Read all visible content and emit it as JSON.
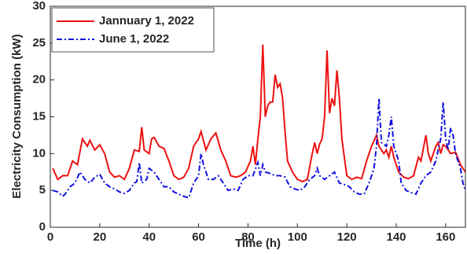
{
  "chart_data": {
    "type": "line",
    "xlabel": "Time (h)",
    "ylabel": "Electricity Consumption (kW)",
    "xlim": [
      0,
      168
    ],
    "ylim": [
      0,
      30
    ],
    "xticks": [
      0,
      20,
      40,
      60,
      80,
      100,
      120,
      140,
      160
    ],
    "yticks": [
      0,
      5,
      10,
      15,
      20,
      25,
      30
    ],
    "grid": false,
    "legend": "upper left",
    "series": [
      {
        "name": "Jannuary 1, 2022",
        "color": "#ee1111",
        "dash": "solid",
        "x": [
          1,
          3,
          5,
          7,
          9,
          11,
          13,
          15,
          16,
          18,
          20,
          22,
          24,
          26,
          28,
          30,
          32,
          34,
          36,
          37,
          38,
          40,
          41,
          42,
          44,
          46,
          48,
          50,
          52,
          54,
          56,
          58,
          60,
          61,
          63,
          65,
          67,
          69,
          71,
          73,
          75,
          77,
          79,
          81,
          82,
          83,
          84,
          85,
          86,
          87,
          88,
          89,
          90,
          91,
          92,
          93,
          94,
          95,
          96,
          98,
          100,
          102,
          104,
          106,
          107,
          108,
          109,
          110,
          111,
          112,
          113,
          114,
          115,
          116,
          117,
          118,
          120,
          122,
          124,
          126,
          128,
          130,
          132,
          133,
          135,
          136,
          137,
          138,
          139,
          141,
          143,
          145,
          147,
          149,
          150,
          152,
          153,
          154,
          156,
          157,
          158,
          159,
          160,
          162,
          164,
          166,
          168
        ],
        "values": [
          8,
          6.5,
          7,
          7,
          9,
          8.5,
          12,
          11,
          11.8,
          10.5,
          11.2,
          10,
          7.5,
          6.8,
          7,
          6.5,
          8,
          10.5,
          10.3,
          13.6,
          10.5,
          10,
          12,
          12.2,
          11,
          10.7,
          9,
          7,
          6.5,
          6.8,
          8,
          11,
          12,
          13,
          10.5,
          12,
          12.8,
          10.5,
          9,
          7,
          6.8,
          7,
          7.5,
          9,
          11,
          8.5,
          12,
          15,
          24.8,
          15,
          16.5,
          17,
          17,
          20.7,
          19,
          19.5,
          17.5,
          13,
          9,
          7.5,
          6.5,
          6.2,
          6.5,
          10,
          11.5,
          10,
          11.3,
          12,
          15,
          24,
          15.5,
          17.5,
          16.5,
          21.3,
          17.5,
          12,
          7,
          6.5,
          6.8,
          6.6,
          9,
          11,
          12.5,
          11,
          10,
          10.5,
          9.5,
          11,
          9.5,
          7.5,
          6.8,
          6.6,
          7,
          9.5,
          9,
          12.5,
          10,
          9,
          11,
          11.5,
          10,
          11.2,
          11,
          10,
          10.2,
          8.5,
          7.5
        ]
      },
      {
        "name": "June 1, 2022",
        "color": "#1010e0",
        "dash": "dashdot",
        "x": [
          1,
          3,
          5,
          6,
          8,
          10,
          12,
          14,
          16,
          18,
          20,
          22,
          24,
          26,
          28,
          30,
          32,
          34,
          35,
          36,
          37,
          39,
          40,
          42,
          44,
          46,
          48,
          50,
          52,
          54,
          56,
          58,
          60,
          61,
          62,
          64,
          66,
          68,
          70,
          72,
          74,
          76,
          78,
          80,
          82,
          84,
          85,
          86,
          87,
          89,
          91,
          93,
          95,
          97,
          99,
          101,
          103,
          105,
          107,
          108,
          109,
          111,
          113,
          115,
          117,
          119,
          121,
          123,
          125,
          127,
          129,
          131,
          132,
          133,
          134,
          136,
          137,
          138,
          139,
          141,
          142,
          144,
          146,
          148,
          150,
          152,
          154,
          156,
          158,
          159,
          160,
          161,
          162,
          163,
          164,
          166,
          167,
          168
        ],
        "values": [
          5,
          4.8,
          4.2,
          4.5,
          5.5,
          6,
          7.5,
          6.5,
          6,
          6.8,
          7.2,
          6,
          5.5,
          5.2,
          4.8,
          4.6,
          5,
          6,
          6.2,
          8.8,
          6,
          6.5,
          8,
          7.5,
          6.5,
          5.5,
          5.5,
          4.8,
          4.5,
          4.2,
          4,
          6,
          7,
          10,
          8.5,
          6.5,
          6.5,
          7,
          6,
          5,
          5.2,
          5,
          6.5,
          7,
          7,
          8.8,
          7,
          8.5,
          7.5,
          7.3,
          7,
          7,
          6.8,
          5.5,
          5.2,
          5,
          5.5,
          6.5,
          7,
          8,
          7,
          6.5,
          7,
          7.5,
          6,
          5.8,
          5.5,
          4.8,
          4.5,
          4.5,
          6,
          8,
          11,
          17.5,
          11.5,
          11,
          12.5,
          15,
          11,
          9,
          6,
          5,
          4.7,
          4.5,
          6,
          7,
          7.5,
          9,
          12,
          17,
          12,
          10.5,
          13.5,
          12.5,
          10,
          8,
          6,
          5
        ]
      }
    ]
  }
}
